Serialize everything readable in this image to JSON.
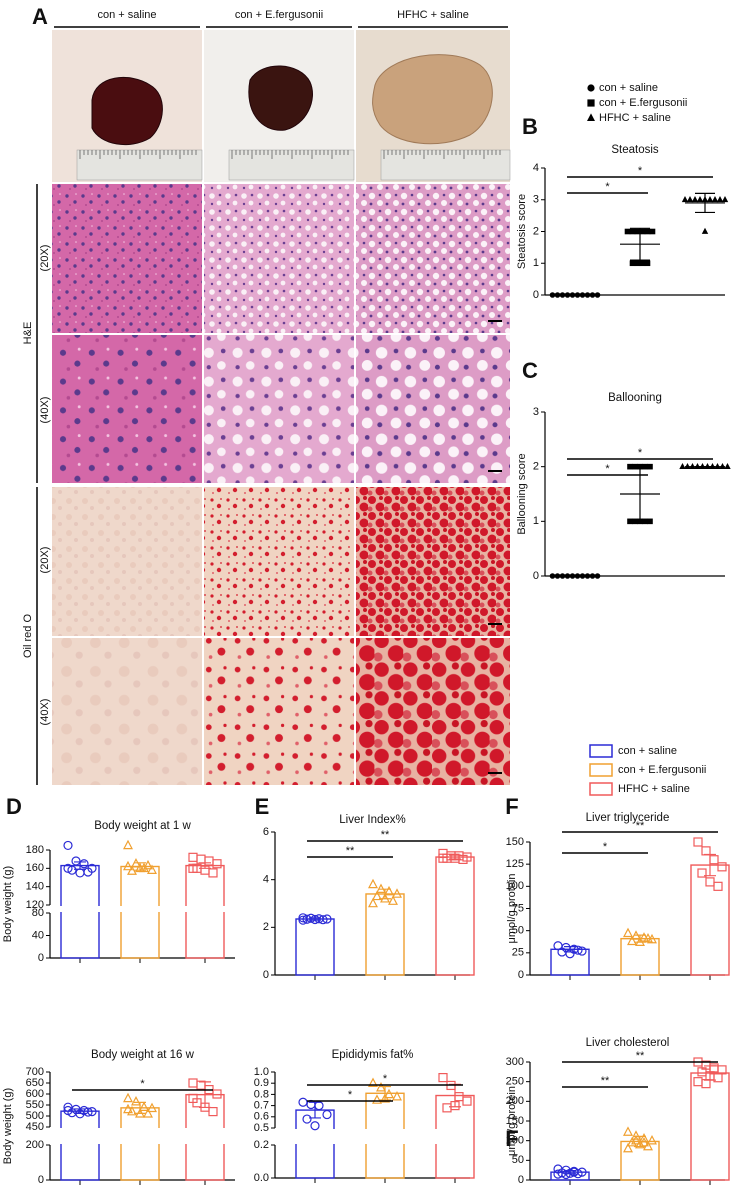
{
  "figure": {
    "panel_labels": [
      "A",
      "B",
      "C",
      "D",
      "E",
      "F",
      "F"
    ],
    "groups": [
      "con + saline",
      "con + E.fergusonii",
      "HFHC + saline"
    ],
    "stains": [
      "H&E",
      "Oil red O"
    ],
    "magnifications": [
      "(20X)",
      "(40X)",
      "(20X)",
      "(40X)"
    ],
    "legend_markers": [
      {
        "name": "con + saline",
        "marker": "circle"
      },
      {
        "name": "con + E.fergusonii",
        "marker": "square"
      },
      {
        "name": "HFHC + saline",
        "marker": "triangle"
      }
    ],
    "legend_colors": [
      {
        "name": "con + saline",
        "color": "#2b2bd6"
      },
      {
        "name": "con + E.fergusonii",
        "color": "#f0a030"
      },
      {
        "name": "HFHC + saline",
        "color": "#f05a5a"
      }
    ]
  },
  "chart_data": [
    {
      "type": "scatter",
      "title": "Steatosis",
      "y_label": "Steatosis score",
      "ylim": [
        0,
        4
      ],
      "yticks": [
        0,
        1,
        2,
        3,
        4
      ],
      "series": [
        {
          "marker": "circle",
          "color": "#000000",
          "mean": 0,
          "sd": 0,
          "points": [
            0,
            0,
            0,
            0,
            0,
            0,
            0,
            0,
            0,
            0
          ]
        },
        {
          "marker": "square",
          "color": "#000000",
          "mean": 1.6,
          "sd": 0.5,
          "points": [
            2,
            2,
            2,
            2,
            2,
            2,
            1,
            1,
            1,
            1
          ]
        },
        {
          "marker": "triangle",
          "color": "#000000",
          "mean": 2.9,
          "sd": 0.3,
          "points": [
            3,
            3,
            3,
            3,
            3,
            3,
            3,
            3,
            3,
            2
          ]
        }
      ],
      "annotations": [
        {
          "from": 0,
          "to": 1,
          "label": "*"
        },
        {
          "from": 0,
          "to": 2,
          "label": "*"
        }
      ]
    },
    {
      "type": "scatter",
      "title": "Ballooning",
      "y_label": "Ballooning score",
      "ylim": [
        0,
        3
      ],
      "yticks": [
        0,
        1,
        2,
        3
      ],
      "series": [
        {
          "marker": "circle",
          "color": "#000000",
          "mean": 0,
          "sd": 0,
          "points": [
            0,
            0,
            0,
            0,
            0,
            0,
            0,
            0,
            0,
            0
          ]
        },
        {
          "marker": "square",
          "color": "#000000",
          "mean": 1.5,
          "sd": 0.5,
          "points": [
            2,
            2,
            2,
            2,
            2,
            1,
            1,
            1,
            1,
            1
          ]
        },
        {
          "marker": "triangle",
          "color": "#000000",
          "mean": 2,
          "sd": 0,
          "points": [
            2,
            2,
            2,
            2,
            2,
            2,
            2,
            2,
            2,
            2
          ]
        }
      ],
      "annotations": [
        {
          "from": 0,
          "to": 1,
          "label": "*"
        },
        {
          "from": 0,
          "to": 2,
          "label": "*"
        }
      ]
    },
    {
      "type": "bar",
      "title": "Body weight at 1 w",
      "y_label": "Body weight (g)",
      "ylim": [
        0,
        180
      ],
      "ybreak": [
        80,
        120
      ],
      "yticks": [
        0,
        40,
        80,
        120,
        140,
        160,
        180
      ],
      "series": [
        {
          "marker": "circle",
          "color": "#2b2bd6",
          "mean": 163,
          "sd": 4,
          "points": [
            185,
            168,
            165,
            160,
            158,
            155,
            156,
            160
          ]
        },
        {
          "marker": "triangle",
          "color": "#f0a030",
          "mean": 162,
          "sd": 4,
          "points": [
            185,
            165,
            160,
            158,
            157,
            160,
            163,
            162
          ]
        },
        {
          "marker": "square",
          "color": "#f05a5a",
          "mean": 163,
          "sd": 3,
          "points": [
            172,
            170,
            168,
            165,
            160,
            158,
            155,
            160
          ]
        }
      ],
      "annotations": []
    },
    {
      "type": "bar",
      "title": "Body weight at 16 w",
      "y_label": "Body weight (g)",
      "ylim": [
        0,
        700
      ],
      "ybreak": [
        200,
        450
      ],
      "yticks": [
        0,
        200,
        450,
        500,
        550,
        600,
        650,
        700
      ],
      "series": [
        {
          "marker": "circle",
          "color": "#2b2bd6",
          "mean": 522,
          "sd": 10,
          "points": [
            540,
            530,
            525,
            520,
            515,
            510,
            518,
            525
          ]
        },
        {
          "marker": "triangle",
          "color": "#f0a030",
          "mean": 537,
          "sd": 25,
          "points": [
            580,
            565,
            540,
            535,
            520,
            510,
            510,
            530
          ]
        },
        {
          "marker": "square",
          "color": "#f05a5a",
          "mean": 597,
          "sd": 58,
          "points": [
            650,
            640,
            620,
            600,
            560,
            540,
            520,
            580
          ]
        }
      ],
      "annotations": [
        {
          "from": 0,
          "to": 2,
          "label": "*"
        }
      ]
    },
    {
      "type": "bar",
      "title": "Liver Index%",
      "ylim": [
        0,
        6
      ],
      "yticks": [
        0,
        2,
        4,
        6
      ],
      "series": [
        {
          "marker": "circle",
          "color": "#2b2bd6",
          "mean": 2.35,
          "sd": 0.05,
          "points": [
            2.4,
            2.38,
            2.36,
            2.35,
            2.34,
            2.33,
            2.32,
            2.3
          ]
        },
        {
          "marker": "triangle",
          "color": "#f0a030",
          "mean": 3.4,
          "sd": 0.2,
          "points": [
            3.8,
            3.6,
            3.5,
            3.4,
            3.3,
            3.2,
            3.1,
            3.0
          ]
        },
        {
          "marker": "square",
          "color": "#f05a5a",
          "mean": 4.95,
          "sd": 0.08,
          "points": [
            5.1,
            5.0,
            5.0,
            4.95,
            4.9,
            4.9,
            4.85,
            4.9
          ]
        }
      ],
      "annotations": [
        {
          "from": 0,
          "to": 1,
          "label": "**"
        },
        {
          "from": 0,
          "to": 2,
          "label": "**"
        }
      ]
    },
    {
      "type": "bar",
      "title": "Epididymis fat%",
      "ylim": [
        0,
        1
      ],
      "ybreak": [
        0.2,
        0.5
      ],
      "yticks": [
        {
          "value": 0,
          "label": "0.0"
        },
        0.2,
        0.5,
        0.6,
        0.7,
        0.8,
        0.9,
        {
          "value": 1,
          "label": "1.0"
        }
      ],
      "series": [
        {
          "marker": "circle",
          "color": "#2b2bd6",
          "mean": 0.66,
          "sd": 0.07,
          "points": [
            0.73,
            0.71,
            0.7,
            0.62,
            0.58,
            0.52
          ]
        },
        {
          "marker": "triangle",
          "color": "#f0a030",
          "mean": 0.81,
          "sd": 0.06,
          "points": [
            0.9,
            0.86,
            0.8,
            0.78,
            0.75,
            0.76
          ]
        },
        {
          "marker": "square",
          "color": "#f05a5a",
          "mean": 0.79,
          "sd": 0.1,
          "points": [
            0.95,
            0.88,
            0.78,
            0.74,
            0.68,
            0.7
          ]
        }
      ],
      "annotations": [
        {
          "from": 0,
          "to": 1,
          "label": "*"
        },
        {
          "from": 0,
          "to": 2,
          "label": "*"
        }
      ]
    },
    {
      "type": "bar",
      "title": "Liver triglyceride",
      "y_label": "μmol/g protein",
      "ylim": [
        0,
        150
      ],
      "yticks": [
        0,
        25,
        50,
        75,
        100,
        125,
        150
      ],
      "series": [
        {
          "marker": "circle",
          "color": "#2b2bd6",
          "mean": 29,
          "sd": 3,
          "points": [
            33,
            31,
            29,
            27,
            26,
            24,
            28
          ]
        },
        {
          "marker": "triangle",
          "color": "#f0a030",
          "mean": 41,
          "sd": 4,
          "points": [
            47,
            44,
            42,
            40,
            38,
            37,
            41
          ]
        },
        {
          "marker": "square",
          "color": "#f05a5a",
          "mean": 124,
          "sd": 12,
          "points": [
            150,
            140,
            130,
            122,
            115,
            105,
            100
          ]
        }
      ],
      "annotations": [
        {
          "from": 0,
          "to": 1,
          "label": "*"
        },
        {
          "from": 0,
          "to": 2,
          "label": "**"
        }
      ]
    },
    {
      "type": "bar",
      "title": "Liver cholesterol",
      "y_label": "μmol/g protein",
      "ylim": [
        0,
        300
      ],
      "yticks": [
        0,
        50,
        100,
        150,
        200,
        250,
        300
      ],
      "series": [
        {
          "marker": "circle",
          "color": "#2b2bd6",
          "mean": 20,
          "sd": 4,
          "points": [
            28,
            25,
            22,
            20,
            18,
            17,
            16,
            15,
            14,
            20
          ]
        },
        {
          "marker": "triangle",
          "color": "#f0a030",
          "mean": 98,
          "sd": 13,
          "points": [
            122,
            112,
            105,
            100,
            95,
            90,
            85,
            80,
            100,
            95
          ]
        },
        {
          "marker": "square",
          "color": "#f05a5a",
          "mean": 272,
          "sd": 18,
          "points": [
            300,
            292,
            285,
            280,
            275,
            265,
            260,
            250,
            245,
            280
          ]
        }
      ],
      "annotations": [
        {
          "from": 0,
          "to": 1,
          "label": "**"
        },
        {
          "from": 0,
          "to": 2,
          "label": "**"
        }
      ]
    }
  ]
}
